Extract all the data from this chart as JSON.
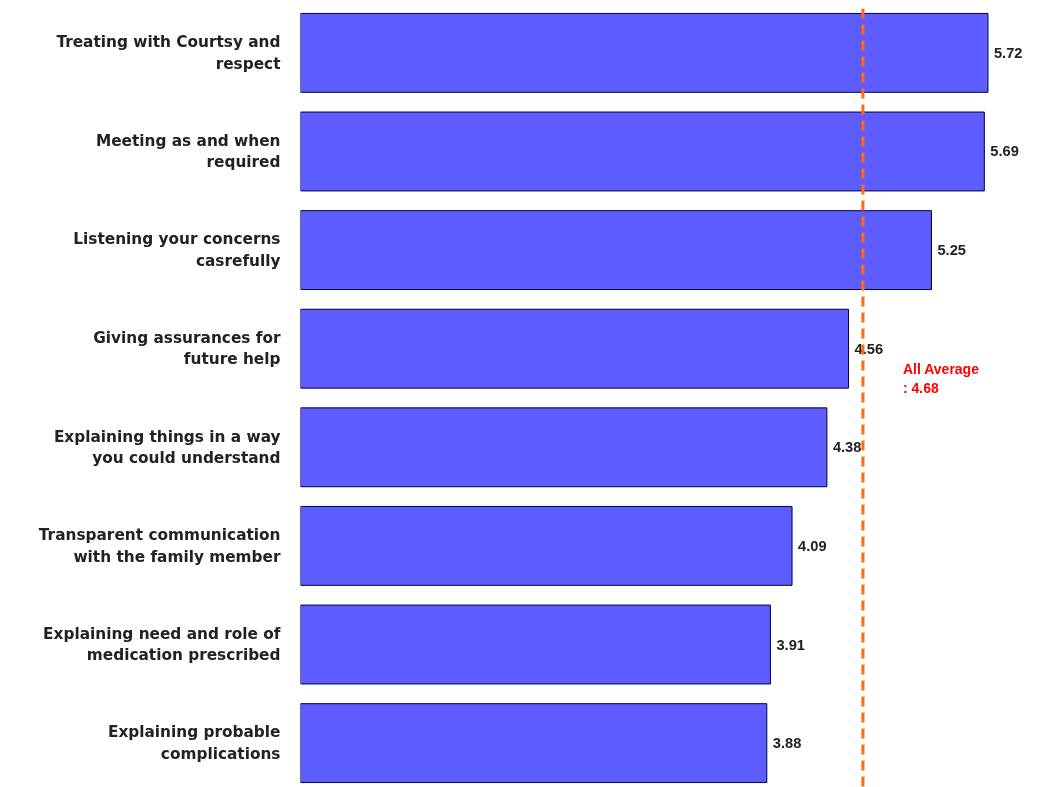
{
  "chart_data": {
    "type": "bar",
    "orientation": "horizontal",
    "categories": [
      "Treating with Courtsy and respect",
      "Meeting as and when required",
      "Listening your concerns casrefully",
      "Giving assurances for future help",
      "Explaining things in a way you could understand",
      "Transparent communication with the family member",
      "Explaining need and role of medication prescribed",
      "Explaining probable complications"
    ],
    "values": [
      5.72,
      5.69,
      5.25,
      4.56,
      4.38,
      4.09,
      3.91,
      3.88
    ],
    "color": "#5c5cff",
    "data_labels": true,
    "grid": false,
    "tick_labels": "y",
    "ref_lines": [
      {
        "axis": "x",
        "value": 4.68,
        "label": "All Average : 4.68",
        "color": "#ff6a13",
        "line_style": "dashed"
      }
    ]
  }
}
